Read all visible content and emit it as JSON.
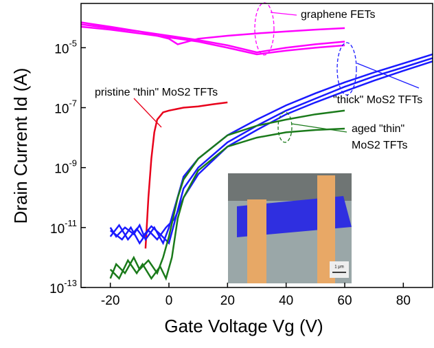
{
  "chart_data": {
    "type": "line",
    "xlabel": "Gate Voltage Vg (V)",
    "ylabel": "Drain Current  Id (A)",
    "xlim": [
      -30,
      90
    ],
    "xticks": [
      -20,
      0,
      20,
      40,
      60,
      80
    ],
    "ylim": [
      1e-13,
      0.0003
    ],
    "log_y": true,
    "yticks": [
      {
        "value": 1e-13,
        "label": "10-13"
      },
      {
        "value": 1e-11,
        "label": "10-11"
      },
      {
        "value": 1e-09,
        "label": "10-9"
      },
      {
        "value": 1e-07,
        "label": "10-7"
      },
      {
        "value": 1e-05,
        "label": "10-5"
      }
    ],
    "annotations": [
      "graphene FETs",
      "pristine \"thin\" MoS2 TFTs",
      "\"thick\" MoS2 TFTs",
      "aged \"thin\"",
      "MoS2 TFTs",
      "1 μm"
    ],
    "series": [
      {
        "color": "#ff00ff",
        "x": [
          -30,
          -20,
          -10,
          0,
          3,
          10,
          20,
          30,
          40,
          50,
          60
        ],
        "values": [
          7e-05,
          5e-05,
          3.5e-05,
          2e-05,
          1.3e-05,
          2e-05,
          2.5e-05,
          3e-05,
          3.5e-05,
          4e-05,
          4.5e-05
        ]
      },
      {
        "color": "#ff00ff",
        "x": [
          -30,
          -20,
          -10,
          0,
          10,
          20,
          30,
          40,
          50,
          60
        ],
        "values": [
          6e-05,
          4.5e-05,
          3.5e-05,
          2.5e-05,
          1.8e-05,
          1.2e-05,
          7e-06,
          1e-05,
          1.3e-05,
          1.6e-05
        ]
      },
      {
        "color": "#ff00ff",
        "x": [
          -30,
          -20,
          -10,
          0,
          10,
          20,
          30,
          40,
          50,
          60
        ],
        "values": [
          5e-05,
          4e-05,
          3e-05,
          2.2e-05,
          1.6e-05,
          1e-05,
          6e-06,
          8e-06,
          1e-05,
          1.2e-05
        ]
      },
      {
        "color": "#e8001a",
        "x": [
          -8,
          -7,
          -6,
          -5,
          -4,
          -2,
          0,
          5,
          10,
          15,
          20
        ],
        "values": [
          2e-12,
          1e-10,
          2e-09,
          1.5e-08,
          4e-08,
          7e-08,
          8e-08,
          1e-07,
          1.1e-07,
          1.3e-07,
          1.5e-07
        ]
      },
      {
        "color": "#1a1aff",
        "x": [
          -20,
          -18,
          -15,
          -12,
          -10,
          -8,
          -5,
          -2,
          0,
          5,
          10,
          20,
          30,
          40,
          50,
          60,
          70,
          80,
          90
        ],
        "values": [
          1e-11,
          5e-12,
          1e-11,
          6e-12,
          1.2e-11,
          4e-12,
          1e-11,
          3e-12,
          1e-11,
          5e-10,
          2e-09,
          1.2e-08,
          4e-08,
          1.2e-07,
          3e-07,
          7e-07,
          1.5e-06,
          3e-06,
          6e-06
        ]
      },
      {
        "color": "#1a1aff",
        "x": [
          -20,
          -17,
          -14,
          -11,
          -9,
          -6,
          -3,
          0,
          5,
          10,
          20,
          30,
          40,
          50,
          60,
          70,
          80,
          90
        ],
        "values": [
          5e-12,
          1.2e-11,
          4e-12,
          9e-12,
          5e-12,
          1.1e-11,
          6e-12,
          3e-12,
          2e-10,
          1e-09,
          7e-09,
          2.5e-08,
          8e-08,
          2e-07,
          5e-07,
          1.1e-06,
          2.2e-06,
          4.5e-06
        ]
      },
      {
        "color": "#1a1aff",
        "x": [
          -20,
          -16,
          -13,
          -10,
          -7,
          -4,
          -1,
          2,
          5,
          10,
          20,
          30,
          40,
          50,
          60,
          70,
          80,
          90
        ],
        "values": [
          8e-12,
          4e-12,
          1e-11,
          3e-12,
          8e-12,
          4e-12,
          1e-11,
          2e-11,
          1e-10,
          6e-10,
          5e-09,
          1.8e-08,
          6e-08,
          1.5e-07,
          3.5e-07,
          8e-07,
          1.7e-06,
          3.5e-06
        ]
      },
      {
        "color": "#1a7a1a",
        "x": [
          -20,
          -18,
          -15,
          -12,
          -10,
          -7,
          -4,
          -2,
          0,
          3,
          5,
          10,
          20,
          30,
          40,
          50,
          60
        ],
        "values": [
          2e-13,
          6e-13,
          3e-13,
          1e-12,
          4e-13,
          8e-13,
          3e-13,
          1e-12,
          5e-12,
          1e-10,
          4e-10,
          2e-09,
          1.2e-08,
          2.5e-08,
          4e-08,
          6e-08,
          8e-08
        ]
      },
      {
        "color": "#1a7a1a",
        "x": [
          -20,
          -17,
          -14,
          -11,
          -9,
          -6,
          -3,
          -1,
          1,
          3,
          5,
          10,
          20,
          30,
          40,
          50,
          60
        ],
        "values": [
          4e-13,
          2e-13,
          8e-13,
          3e-13,
          6e-13,
          2e-13,
          5e-13,
          2e-13,
          1e-12,
          2e-11,
          1e-10,
          8e-10,
          5e-09,
          1e-08,
          1.5e-08,
          1.8e-08,
          2e-08
        ]
      }
    ]
  }
}
